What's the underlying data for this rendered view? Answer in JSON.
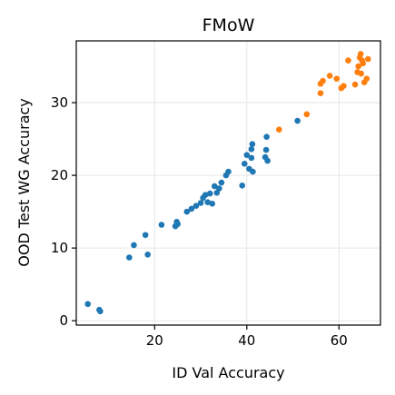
{
  "chart_data": {
    "type": "scatter",
    "title": "FMoW",
    "xlabel": "ID Val Accuracy",
    "ylabel": "OOD Test WG Accuracy",
    "xlim": [
      3,
      69
    ],
    "ylim": [
      -0.6,
      38.5
    ],
    "xticks": [
      20,
      40,
      60
    ],
    "yticks": [
      0,
      10,
      20,
      30
    ],
    "grid": true,
    "legend": "none",
    "series": [
      {
        "color": "#1f77b4",
        "points": [
          [
            5.5,
            2.3
          ],
          [
            8,
            1.5
          ],
          [
            8.2,
            1.3
          ],
          [
            14.5,
            8.7
          ],
          [
            15.5,
            10.4
          ],
          [
            18,
            11.8
          ],
          [
            18.5,
            9.1
          ],
          [
            21.5,
            13.2
          ],
          [
            24.5,
            13.0
          ],
          [
            24.8,
            13.6
          ],
          [
            25,
            13.3
          ],
          [
            27,
            15.0
          ],
          [
            28,
            15.4
          ],
          [
            29,
            15.8
          ],
          [
            30,
            16.2
          ],
          [
            30.5,
            16.9
          ],
          [
            31,
            17.3
          ],
          [
            31.5,
            16.3
          ],
          [
            32,
            17.5
          ],
          [
            32.5,
            16.1
          ],
          [
            33,
            18.5
          ],
          [
            33.5,
            17.6
          ],
          [
            34,
            18.2
          ],
          [
            34.5,
            19.0
          ],
          [
            35.5,
            20.0
          ],
          [
            36,
            20.5
          ],
          [
            39,
            18.6
          ],
          [
            39.5,
            21.6
          ],
          [
            40,
            22.8
          ],
          [
            40.5,
            20.9
          ],
          [
            41,
            22.4
          ],
          [
            41,
            23.6
          ],
          [
            41.2,
            24.3
          ],
          [
            41.3,
            20.5
          ],
          [
            44,
            22.5
          ],
          [
            44.2,
            23.5
          ],
          [
            44.3,
            25.3
          ],
          [
            44.5,
            22.0
          ],
          [
            51,
            27.5
          ]
        ]
      },
      {
        "color": "#ff7f0e",
        "points": [
          [
            47,
            26.3
          ],
          [
            53,
            28.4
          ],
          [
            56,
            31.3
          ],
          [
            56,
            32.6
          ],
          [
            56.5,
            33.0
          ],
          [
            58,
            33.7
          ],
          [
            59.5,
            33.3
          ],
          [
            60.5,
            32.0
          ],
          [
            61,
            32.3
          ],
          [
            62,
            35.8
          ],
          [
            63.5,
            32.5
          ],
          [
            64,
            34.2
          ],
          [
            64.2,
            35.0
          ],
          [
            64.5,
            36.2
          ],
          [
            64.7,
            36.7
          ],
          [
            64.8,
            34.0
          ],
          [
            65,
            35.8
          ],
          [
            65.2,
            35.4
          ],
          [
            65.5,
            32.8
          ],
          [
            66,
            33.3
          ],
          [
            66.3,
            36.0
          ]
        ]
      }
    ]
  }
}
